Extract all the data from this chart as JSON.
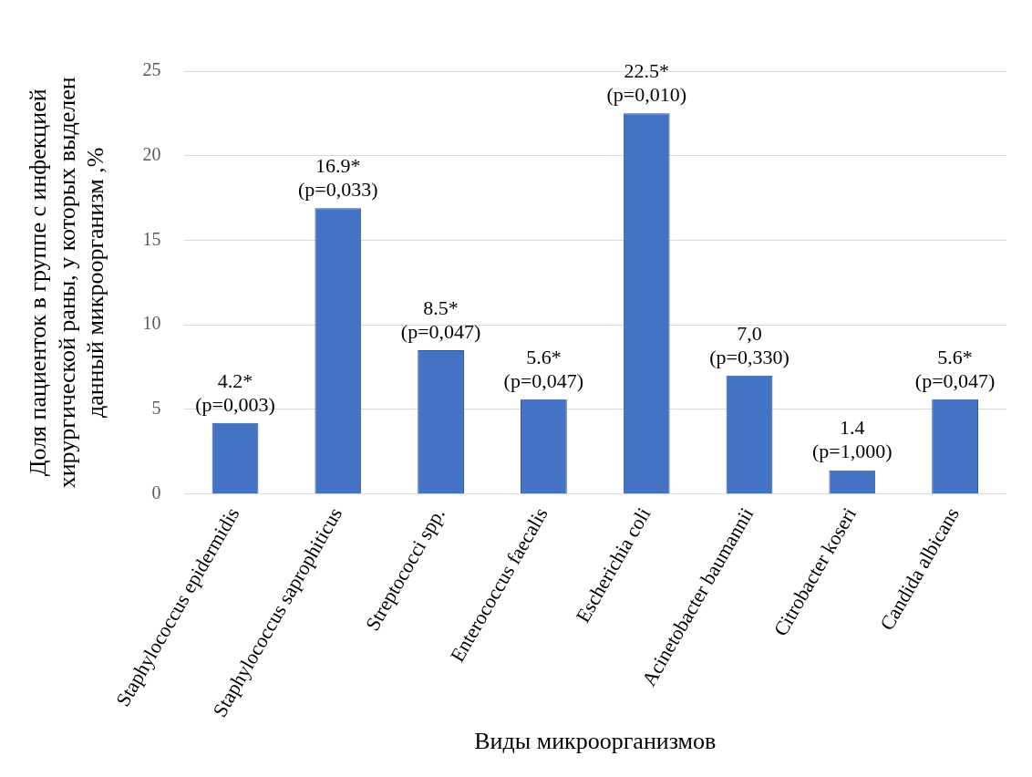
{
  "chart_data": {
    "type": "bar",
    "xlabel": "Виды микроорганизмов",
    "ylabel": "Доля пациенток в группе с инфекцией хирургической раны, у которых выделен данный микроорганизм ,%",
    "categories": [
      "Staphylococcus epidermidis",
      "Staphylococcus saprophiticus",
      "Streptococci spp.",
      "Enterococcus faecalis",
      "Escherichia coli",
      "Acinetobacter baumannii",
      "Citrobacter koseri",
      "Candida albicans"
    ],
    "values": [
      4.2,
      16.9,
      8.5,
      5.6,
      22.5,
      7.0,
      1.4,
      5.6
    ],
    "value_labels": [
      "4.2*\n(p=0,003)",
      "16.9*\n(p=0,033)",
      "8.5*\n(p=0,047)",
      "5.6*\n(p=0,047)",
      "22.5*\n(p=0,010)",
      "7,0\n(p=0,330)",
      "1.4\n(p=1,000)",
      "5.6*\n(p=0,047)"
    ],
    "color": "#4472c4",
    "ylim": [
      0,
      25
    ],
    "yticks": [
      0,
      5,
      10,
      15,
      20,
      25
    ],
    "grid": "y",
    "legend": false
  }
}
